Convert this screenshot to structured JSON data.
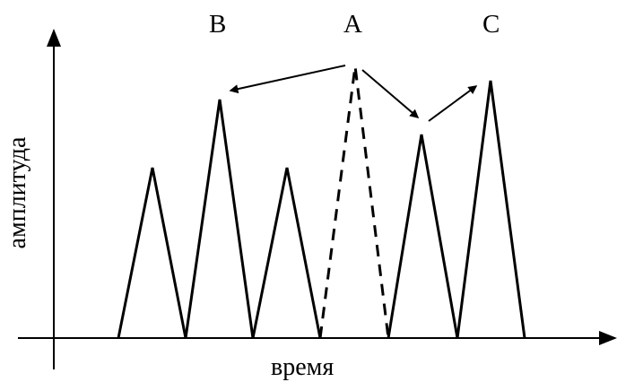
{
  "labels": {
    "peak_b": "B",
    "peak_a": "A",
    "peak_c": "C"
  },
  "axes": {
    "x_label": "время",
    "y_label": "амплитуда"
  },
  "peaks": [
    {
      "id": "p1",
      "height": 0.72,
      "style": "solid"
    },
    {
      "id": "B",
      "height": 1.0,
      "style": "solid"
    },
    {
      "id": "p3",
      "height": 0.72,
      "style": "solid"
    },
    {
      "id": "A",
      "height": 1.1,
      "style": "dashed"
    },
    {
      "id": "p5",
      "height": 0.85,
      "style": "solid"
    },
    {
      "id": "C",
      "height": 1.08,
      "style": "solid"
    }
  ],
  "arrows": [
    {
      "from": "A",
      "to": "B"
    },
    {
      "from": "A",
      "to": "p5"
    },
    {
      "from": "p5",
      "to": "C"
    }
  ],
  "colors": {
    "stroke": "#000000",
    "background": "#ffffff"
  }
}
